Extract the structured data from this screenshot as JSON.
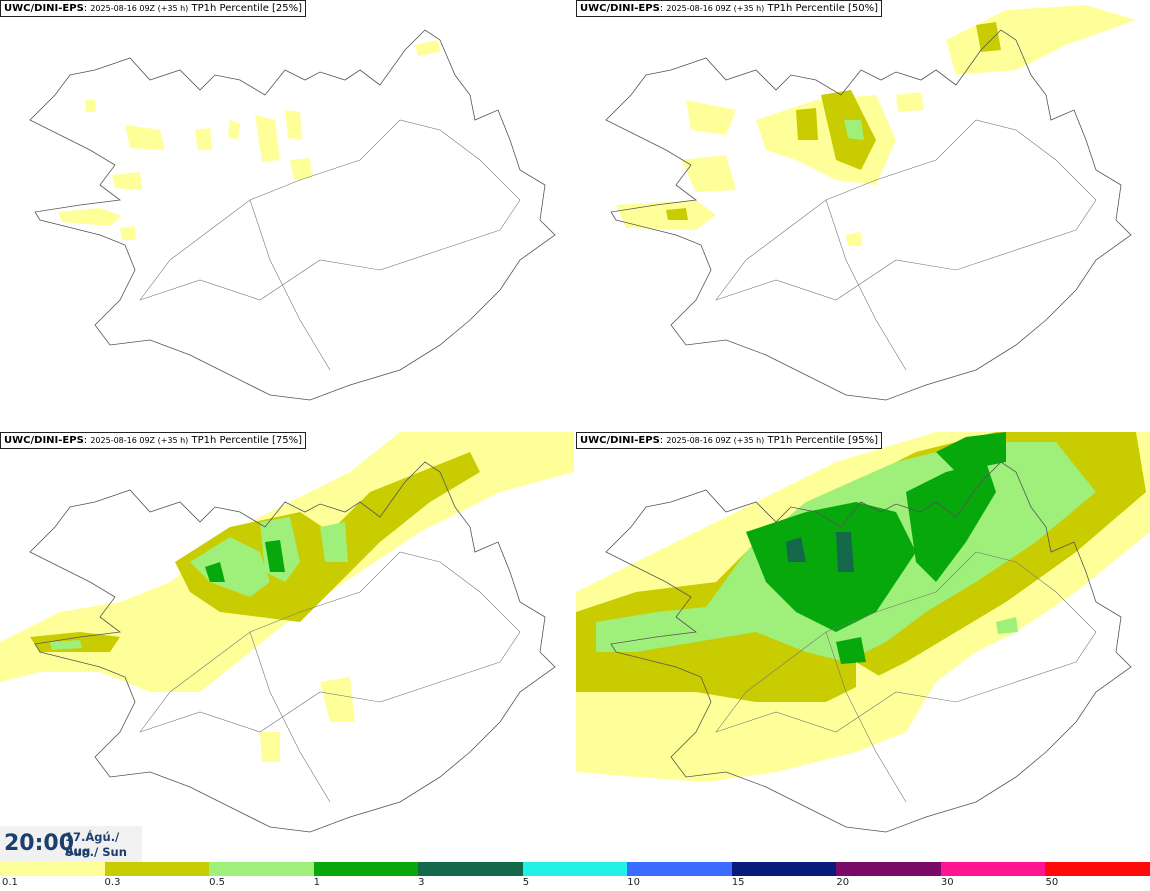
{
  "panels": [
    {
      "model": "UWC/DINI-EPS",
      "run": "2025-08-16 09Z (+35 h)",
      "field": "TP1h Percentile [25%]"
    },
    {
      "model": "UWC/DINI-EPS",
      "run": "2025-08-16 09Z (+35 h)",
      "field": "TP1h Percentile [50%]"
    },
    {
      "model": "UWC/DINI-EPS",
      "run": "2025-08-16 09Z (+35 h)",
      "field": "TP1h Percentile [75%]"
    },
    {
      "model": "UWC/DINI-EPS",
      "run": "2025-08-16 09Z (+35 h)",
      "field": "TP1h Percentile [95%]"
    }
  ],
  "valid": {
    "time": "20:00",
    "date": "17.Ágú./ Aug",
    "day": "Sun./ Sun"
  },
  "legend": {
    "colors": [
      "#ffff99",
      "#c8cc00",
      "#9ef07a",
      "#06a80c",
      "#13694a",
      "#23f0e6",
      "#3c6cff",
      "#0a1a7a",
      "#7a0a6a",
      "#ff1493",
      "#ff0a0a"
    ],
    "labels": [
      "0.1",
      "0.3",
      "0.5",
      "1",
      "3",
      "5",
      "10",
      "15",
      "20",
      "30",
      "50"
    ]
  },
  "precip_colors": {
    "light": "#ffff99",
    "mod": "#c8cc00",
    "heavy": "#9ef07a",
    "vheavy": "#06a80c",
    "extreme": "#13694a"
  }
}
